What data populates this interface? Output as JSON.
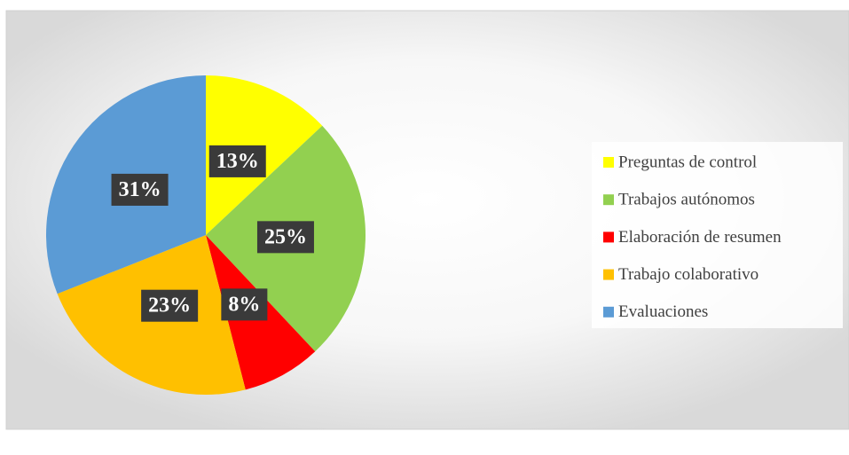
{
  "chart_data": {
    "type": "pie",
    "categories": [
      "Preguntas de control",
      "Trabajos autónomos",
      "Elaboración de resumen",
      "Trabajo colaborativo",
      "Evaluaciones"
    ],
    "values": [
      13,
      25,
      8,
      23,
      31
    ],
    "value_labels": [
      "13%",
      "25%",
      "8%",
      "23%",
      "31%"
    ],
    "colors": [
      "#ffff00",
      "#92d050",
      "#ff0000",
      "#ffc000",
      "#5b9bd5"
    ],
    "legend": "right"
  }
}
